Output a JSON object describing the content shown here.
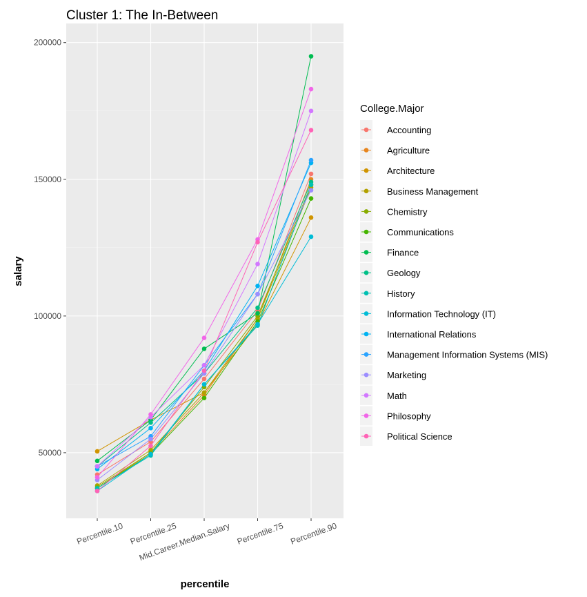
{
  "chart_data": {
    "type": "line",
    "title": "Cluster 1: The In-Between",
    "xlabel": "percentile",
    "ylabel": "salary",
    "categories": [
      "Percentile.10",
      "Percentile.25",
      "Mid.Career.Median.Salary",
      "Percentile.75",
      "Percentile.90"
    ],
    "yticks": [
      50000,
      100000,
      150000,
      200000
    ],
    "ytick_labels": [
      "50000",
      "100000",
      "150000",
      "200000"
    ],
    "ylim": [
      26000,
      207000
    ],
    "grid": true,
    "legend": {
      "title": "College.Major",
      "position": "right"
    },
    "series": [
      {
        "name": "Accounting",
        "color": "#F8766D",
        "values": [
          42000,
          54000,
          77000,
          102000,
          152000
        ]
      },
      {
        "name": "Agriculture",
        "color": "#E7851E",
        "values": [
          37000,
          50000,
          71000,
          99000,
          150000
        ]
      },
      {
        "name": "Architecture",
        "color": "#D09400",
        "values": [
          50500,
          62000,
          72000,
          97000,
          136000
        ]
      },
      {
        "name": "Business Management",
        "color": "#B2A100",
        "values": [
          38000,
          51000,
          72000,
          99000,
          147000
        ]
      },
      {
        "name": "Chemistry",
        "color": "#89AC00",
        "values": [
          37500,
          50000,
          74000,
          100000,
          148000
        ]
      },
      {
        "name": "Communications",
        "color": "#45B500",
        "values": [
          37000,
          49500,
          70000,
          98000,
          143000
        ]
      },
      {
        "name": "Finance",
        "color": "#00BC51",
        "values": [
          47000,
          62000,
          88000,
          101000,
          195000
        ]
      },
      {
        "name": "Geology",
        "color": "#00C087",
        "values": [
          45000,
          61000,
          79000,
          103000,
          149000
        ]
      },
      {
        "name": "History",
        "color": "#00C0B2",
        "values": [
          37000,
          49000,
          75000,
          96500,
          148000
        ]
      },
      {
        "name": "Information Technology (IT)",
        "color": "#00BCD6",
        "values": [
          36000,
          49500,
          75000,
          97000,
          129000
        ]
      },
      {
        "name": "International Relations",
        "color": "#00B3F2",
        "values": [
          44000,
          59000,
          80000,
          111000,
          156000
        ]
      },
      {
        "name": "Management Information Systems (MIS)",
        "color": "#29A3FF",
        "values": [
          45000,
          56000,
          82000,
          108000,
          157000
        ]
      },
      {
        "name": "Marketing",
        "color": "#9C8DFF",
        "values": [
          40000,
          55000,
          79000,
          108000,
          146000
        ]
      },
      {
        "name": "Math",
        "color": "#D277FF",
        "values": [
          45000,
          63000,
          82000,
          119000,
          175000
        ]
      },
      {
        "name": "Philosophy",
        "color": "#F166E8",
        "values": [
          41000,
          64000,
          92000,
          128000,
          183000
        ]
      },
      {
        "name": "Political Science",
        "color": "#FF63B6",
        "values": [
          36000,
          52500,
          80000,
          127000,
          168000
        ]
      }
    ]
  }
}
